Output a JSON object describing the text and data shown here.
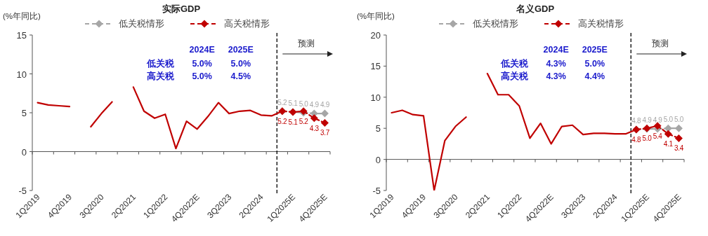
{
  "chart_data": [
    {
      "type": "line",
      "title": "实际GDP",
      "ylabel": "(%年同比)",
      "legend": "top",
      "categories": [
        "1Q2019",
        null,
        null,
        "4Q2019",
        null,
        null,
        "3Q2020",
        null,
        null,
        "2Q2021",
        null,
        null,
        "1Q2022",
        null,
        null,
        "4Q2022E",
        null,
        null,
        "3Q2023",
        null,
        null,
        "2Q2024",
        null,
        null,
        "1Q2025E",
        null,
        null,
        "4Q2025E"
      ],
      "ylim": [
        -5,
        15
      ],
      "yticks": [
        -5,
        0,
        5,
        10,
        15
      ],
      "series": [
        {
          "color": "#c00000",
          "line_style": "solid",
          "marker": "none",
          "values": [
            6.3,
            6.0,
            5.9,
            5.8,
            null,
            3.2,
            4.9,
            6.4,
            null,
            8.3,
            5.2,
            4.3,
            4.8,
            0.4,
            3.9,
            2.9,
            4.5,
            6.3,
            4.9,
            5.2,
            5.3,
            4.7,
            4.6,
            5.2,
            null,
            null,
            null,
            null
          ]
        },
        {
          "name": "低关税情形",
          "color": "#a6a6a6",
          "line_style": "dashed",
          "marker": "diamond",
          "values": [
            null,
            null,
            null,
            null,
            null,
            null,
            null,
            null,
            null,
            null,
            null,
            null,
            null,
            null,
            null,
            null,
            null,
            null,
            null,
            null,
            null,
            null,
            null,
            5.2,
            5.1,
            5.0,
            4.9,
            4.9
          ],
          "value_labels": [
            null,
            null,
            null,
            null,
            null,
            null,
            null,
            null,
            null,
            null,
            null,
            null,
            null,
            null,
            null,
            null,
            null,
            null,
            null,
            null,
            null,
            null,
            null,
            "5.2",
            "5.1",
            "5.0",
            "4.9",
            "4.9"
          ]
        },
        {
          "name": "高关税情形",
          "color": "#c00000",
          "line_style": "dashed",
          "marker": "diamond",
          "values": [
            null,
            null,
            null,
            null,
            null,
            null,
            null,
            null,
            null,
            null,
            null,
            null,
            null,
            null,
            null,
            null,
            null,
            null,
            null,
            null,
            null,
            null,
            null,
            5.2,
            5.1,
            5.2,
            4.3,
            3.7
          ],
          "value_labels": [
            null,
            null,
            null,
            null,
            null,
            null,
            null,
            null,
            null,
            null,
            null,
            null,
            null,
            null,
            null,
            null,
            null,
            null,
            null,
            null,
            null,
            null,
            null,
            "5.2",
            "5.1",
            "5.2",
            "4.3",
            "3.7"
          ]
        }
      ],
      "annotations": [
        "2024E",
        "2025E",
        "低关税",
        "5.0%",
        "5.0%",
        "高关税",
        "5.0%",
        "4.5%",
        "预测"
      ]
    },
    {
      "type": "line",
      "title": "名义GDP",
      "ylabel": "(%年同比)",
      "legend": "top",
      "categories": [
        "1Q2019",
        null,
        null,
        "4Q2019",
        null,
        null,
        "3Q2020",
        null,
        null,
        "2Q2021",
        null,
        null,
        "1Q2022",
        null,
        null,
        "4Q2022E",
        null,
        null,
        "3Q2023",
        null,
        null,
        "2Q2024",
        null,
        null,
        "1Q2025E",
        null,
        null,
        "4Q2025E"
      ],
      "ylim": [
        -5,
        20
      ],
      "yticks": [
        -5,
        0,
        5,
        10,
        15,
        20
      ],
      "series": [
        {
          "color": "#c00000",
          "line_style": "solid",
          "marker": "none",
          "values": [
            7.5,
            7.9,
            7.2,
            7.0,
            -5.0,
            3.0,
            5.3,
            6.8,
            null,
            13.8,
            10.4,
            10.4,
            8.6,
            3.4,
            5.8,
            2.5,
            5.3,
            5.5,
            4.0,
            4.2,
            4.2,
            4.1,
            4.1,
            4.8,
            null,
            null,
            null,
            null
          ]
        },
        {
          "name": "低关税情形",
          "color": "#a6a6a6",
          "line_style": "dashed",
          "marker": "diamond",
          "values": [
            null,
            null,
            null,
            null,
            null,
            null,
            null,
            null,
            null,
            null,
            null,
            null,
            null,
            null,
            null,
            null,
            null,
            null,
            null,
            null,
            null,
            null,
            null,
            4.8,
            4.9,
            4.9,
            5.0,
            5.0
          ],
          "value_labels": [
            null,
            null,
            null,
            null,
            null,
            null,
            null,
            null,
            null,
            null,
            null,
            null,
            null,
            null,
            null,
            null,
            null,
            null,
            null,
            null,
            null,
            null,
            null,
            "4.8",
            "4.9",
            "4.9",
            "5.0",
            "5.0"
          ]
        },
        {
          "name": "高关税情形",
          "color": "#c00000",
          "line_style": "dashed",
          "marker": "diamond",
          "values": [
            null,
            null,
            null,
            null,
            null,
            null,
            null,
            null,
            null,
            null,
            null,
            null,
            null,
            null,
            null,
            null,
            null,
            null,
            null,
            null,
            null,
            null,
            null,
            4.8,
            5.0,
            5.4,
            4.1,
            3.4
          ],
          "value_labels": [
            null,
            null,
            null,
            null,
            null,
            null,
            null,
            null,
            null,
            null,
            null,
            null,
            null,
            null,
            null,
            null,
            null,
            null,
            null,
            null,
            null,
            null,
            null,
            "4.8",
            "5.0",
            "5.4",
            "4.1",
            "3.4"
          ]
        }
      ],
      "annotations": [
        "2024E",
        "2025E",
        "低关税",
        "4.3%",
        "5.0%",
        "高关税",
        "4.3%",
        "4.4%",
        "预测"
      ]
    }
  ]
}
